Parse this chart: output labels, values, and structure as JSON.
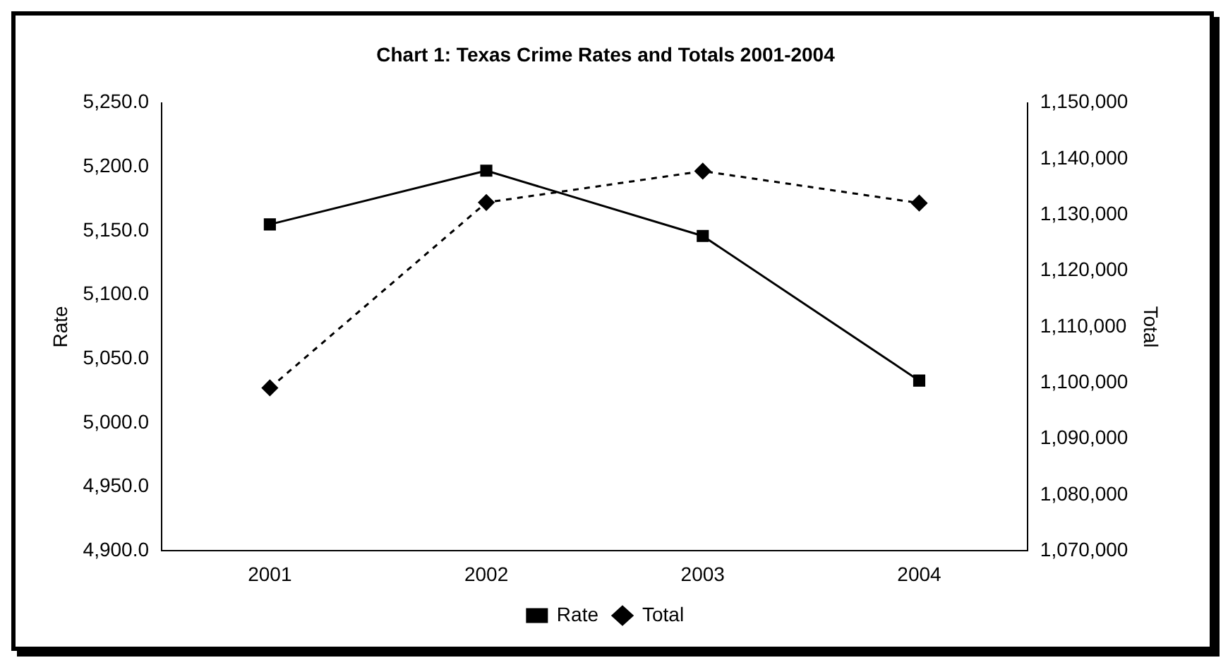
{
  "chart_data": {
    "type": "line",
    "title": "Chart 1: Texas Crime Rates and Totals 2001-2004",
    "ylabel": "Rate",
    "y2label": "Total",
    "categories": [
      "2001",
      "2002",
      "2003",
      "2004"
    ],
    "series": [
      {
        "name": "Rate",
        "color": "#000000",
        "values": [
          5155,
          5197,
          5146,
          5033
        ],
        "marker": "square",
        "line_style": "solid"
      },
      {
        "name": "Total",
        "color": "#000000",
        "values": [
          1099100,
          1132200,
          1137800,
          1132100
        ],
        "axis": "y2",
        "marker": "diamond",
        "line_style": "dashed"
      }
    ],
    "ylim": [
      4900,
      5250
    ],
    "yticks": [
      {
        "value": 4900,
        "label": "4,900.0"
      },
      {
        "value": 4950,
        "label": "4,950.0"
      },
      {
        "value": 5000,
        "label": "5,000.0"
      },
      {
        "value": 5050,
        "label": "5,050.0"
      },
      {
        "value": 5100,
        "label": "5,100.0"
      },
      {
        "value": 5150,
        "label": "5,150.0"
      },
      {
        "value": 5200,
        "label": "5,200.0"
      },
      {
        "value": 5250,
        "label": "5,250.0"
      }
    ],
    "y2lim": [
      1070000,
      1150000
    ],
    "y2ticks": [
      {
        "value": 1070000,
        "label": "1,070,000"
      },
      {
        "value": 1080000,
        "label": "1,080,000"
      },
      {
        "value": 1090000,
        "label": "1,090,000"
      },
      {
        "value": 1100000,
        "label": "1,100,000"
      },
      {
        "value": 1110000,
        "label": "1,110,000"
      },
      {
        "value": 1120000,
        "label": "1,120,000"
      },
      {
        "value": 1130000,
        "label": "1,130,000"
      },
      {
        "value": 1140000,
        "label": "1,140,000"
      },
      {
        "value": 1150000,
        "label": "1,150,000"
      }
    ],
    "grid": false,
    "legend": "bottom"
  }
}
